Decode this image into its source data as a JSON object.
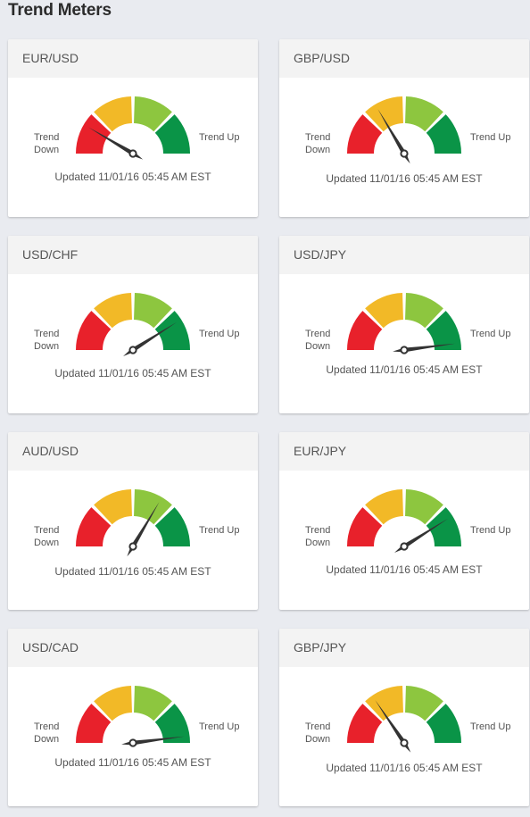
{
  "page": {
    "title": "Trend Meters"
  },
  "labels": {
    "down_line1": "Trend",
    "down_line2": "Down",
    "up": "Trend Up"
  },
  "colors": {
    "red": "#e8212b",
    "orange": "#f2b927",
    "light_green": "#8dc63f",
    "green": "#0a9447",
    "needle": "#333333"
  },
  "meters": [
    {
      "pair": "EUR/USD",
      "value": 0.17,
      "updated": "Updated 11/01/16 05:45 AM EST"
    },
    {
      "pair": "GBP/USD",
      "value": 0.33,
      "updated": "Updated 11/01/16 05:45 AM EST"
    },
    {
      "pair": "USD/CHF",
      "value": 0.82,
      "updated": "Updated 11/01/16 05:45 AM EST"
    },
    {
      "pair": "USD/JPY",
      "value": 0.96,
      "updated": "Updated 11/01/16 05:45 AM EST"
    },
    {
      "pair": "AUD/USD",
      "value": 0.67,
      "updated": "Updated 11/01/16 05:45 AM EST"
    },
    {
      "pair": "EUR/JPY",
      "value": 0.82,
      "updated": "Updated 11/01/16 05:45 AM EST"
    },
    {
      "pair": "USD/CAD",
      "value": 0.96,
      "updated": "Updated 11/01/16 05:45 AM EST"
    },
    {
      "pair": "GBP/JPY",
      "value": 0.31,
      "updated": "Updated 11/01/16 05:45 AM EST"
    }
  ]
}
